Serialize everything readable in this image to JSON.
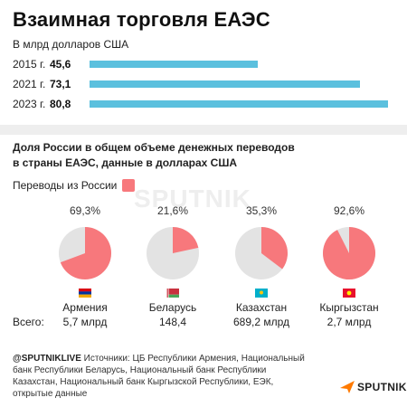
{
  "title": "Взаимная торговля ЕАЭС",
  "trade": {
    "unit": "В млрд долларов США",
    "rows": [
      {
        "year": "2015 г.",
        "value": "45,6"
      },
      {
        "year": "2021 г.",
        "value": "73,1"
      },
      {
        "year": "2023 г.",
        "value": "80,8"
      }
    ]
  },
  "remit": {
    "heading_line1": "Доля России в общем объеме денежных переводов",
    "heading_line2": "в страны ЕАЭС, данные в долларах США",
    "legend_label": "Переводы из России",
    "total_label": "Всего:",
    "countries": [
      {
        "name": "Армения",
        "pct": "69,3%",
        "total": "5,7 млрд"
      },
      {
        "name": "Беларусь",
        "pct": "21,6%",
        "total": "148,4"
      },
      {
        "name": "Казахстан",
        "pct": "35,3%",
        "total": "689,2 млрд"
      },
      {
        "name": "Кыргызстан",
        "pct": "92,6%",
        "total": "2,7 млрд"
      }
    ]
  },
  "watermark": "SPUTNIK",
  "footer": {
    "handle": "@SPUTNIKLIVE",
    "sources": " Источники: ЦБ Республики Армения, Национальный банк Республики Беларусь, Национальный банк Республики Казахстан, Национальный банк Кыргызской Республики, ЕЭК, открытые данные"
  },
  "brand": "SPUTNIK",
  "colors": {
    "bar": "#5bc0de",
    "russia": "#f7787c",
    "rest": "#e3e3e3"
  },
  "chart_data": [
    {
      "type": "bar",
      "orientation": "horizontal",
      "title": "Взаимная торговля ЕАЭС",
      "subtitle": "В млрд долларов США",
      "categories": [
        "2015 г.",
        "2021 г.",
        "2023 г."
      ],
      "values": [
        45.6,
        73.1,
        80.8
      ]
    },
    {
      "type": "pie",
      "title": "Доля России в общем объеме денежных переводов в страны ЕАЭС, данные в долларах США",
      "legend": [
        "Переводы из России"
      ],
      "categories": [
        "Армения",
        "Беларусь",
        "Казахстан",
        "Кыргызстан"
      ],
      "russia_share_pct": [
        69.3,
        21.6,
        35.3,
        92.6
      ],
      "totals": [
        "5,7 млрд",
        "148,4",
        "689,2 млрд",
        "2,7 млрд"
      ]
    }
  ]
}
